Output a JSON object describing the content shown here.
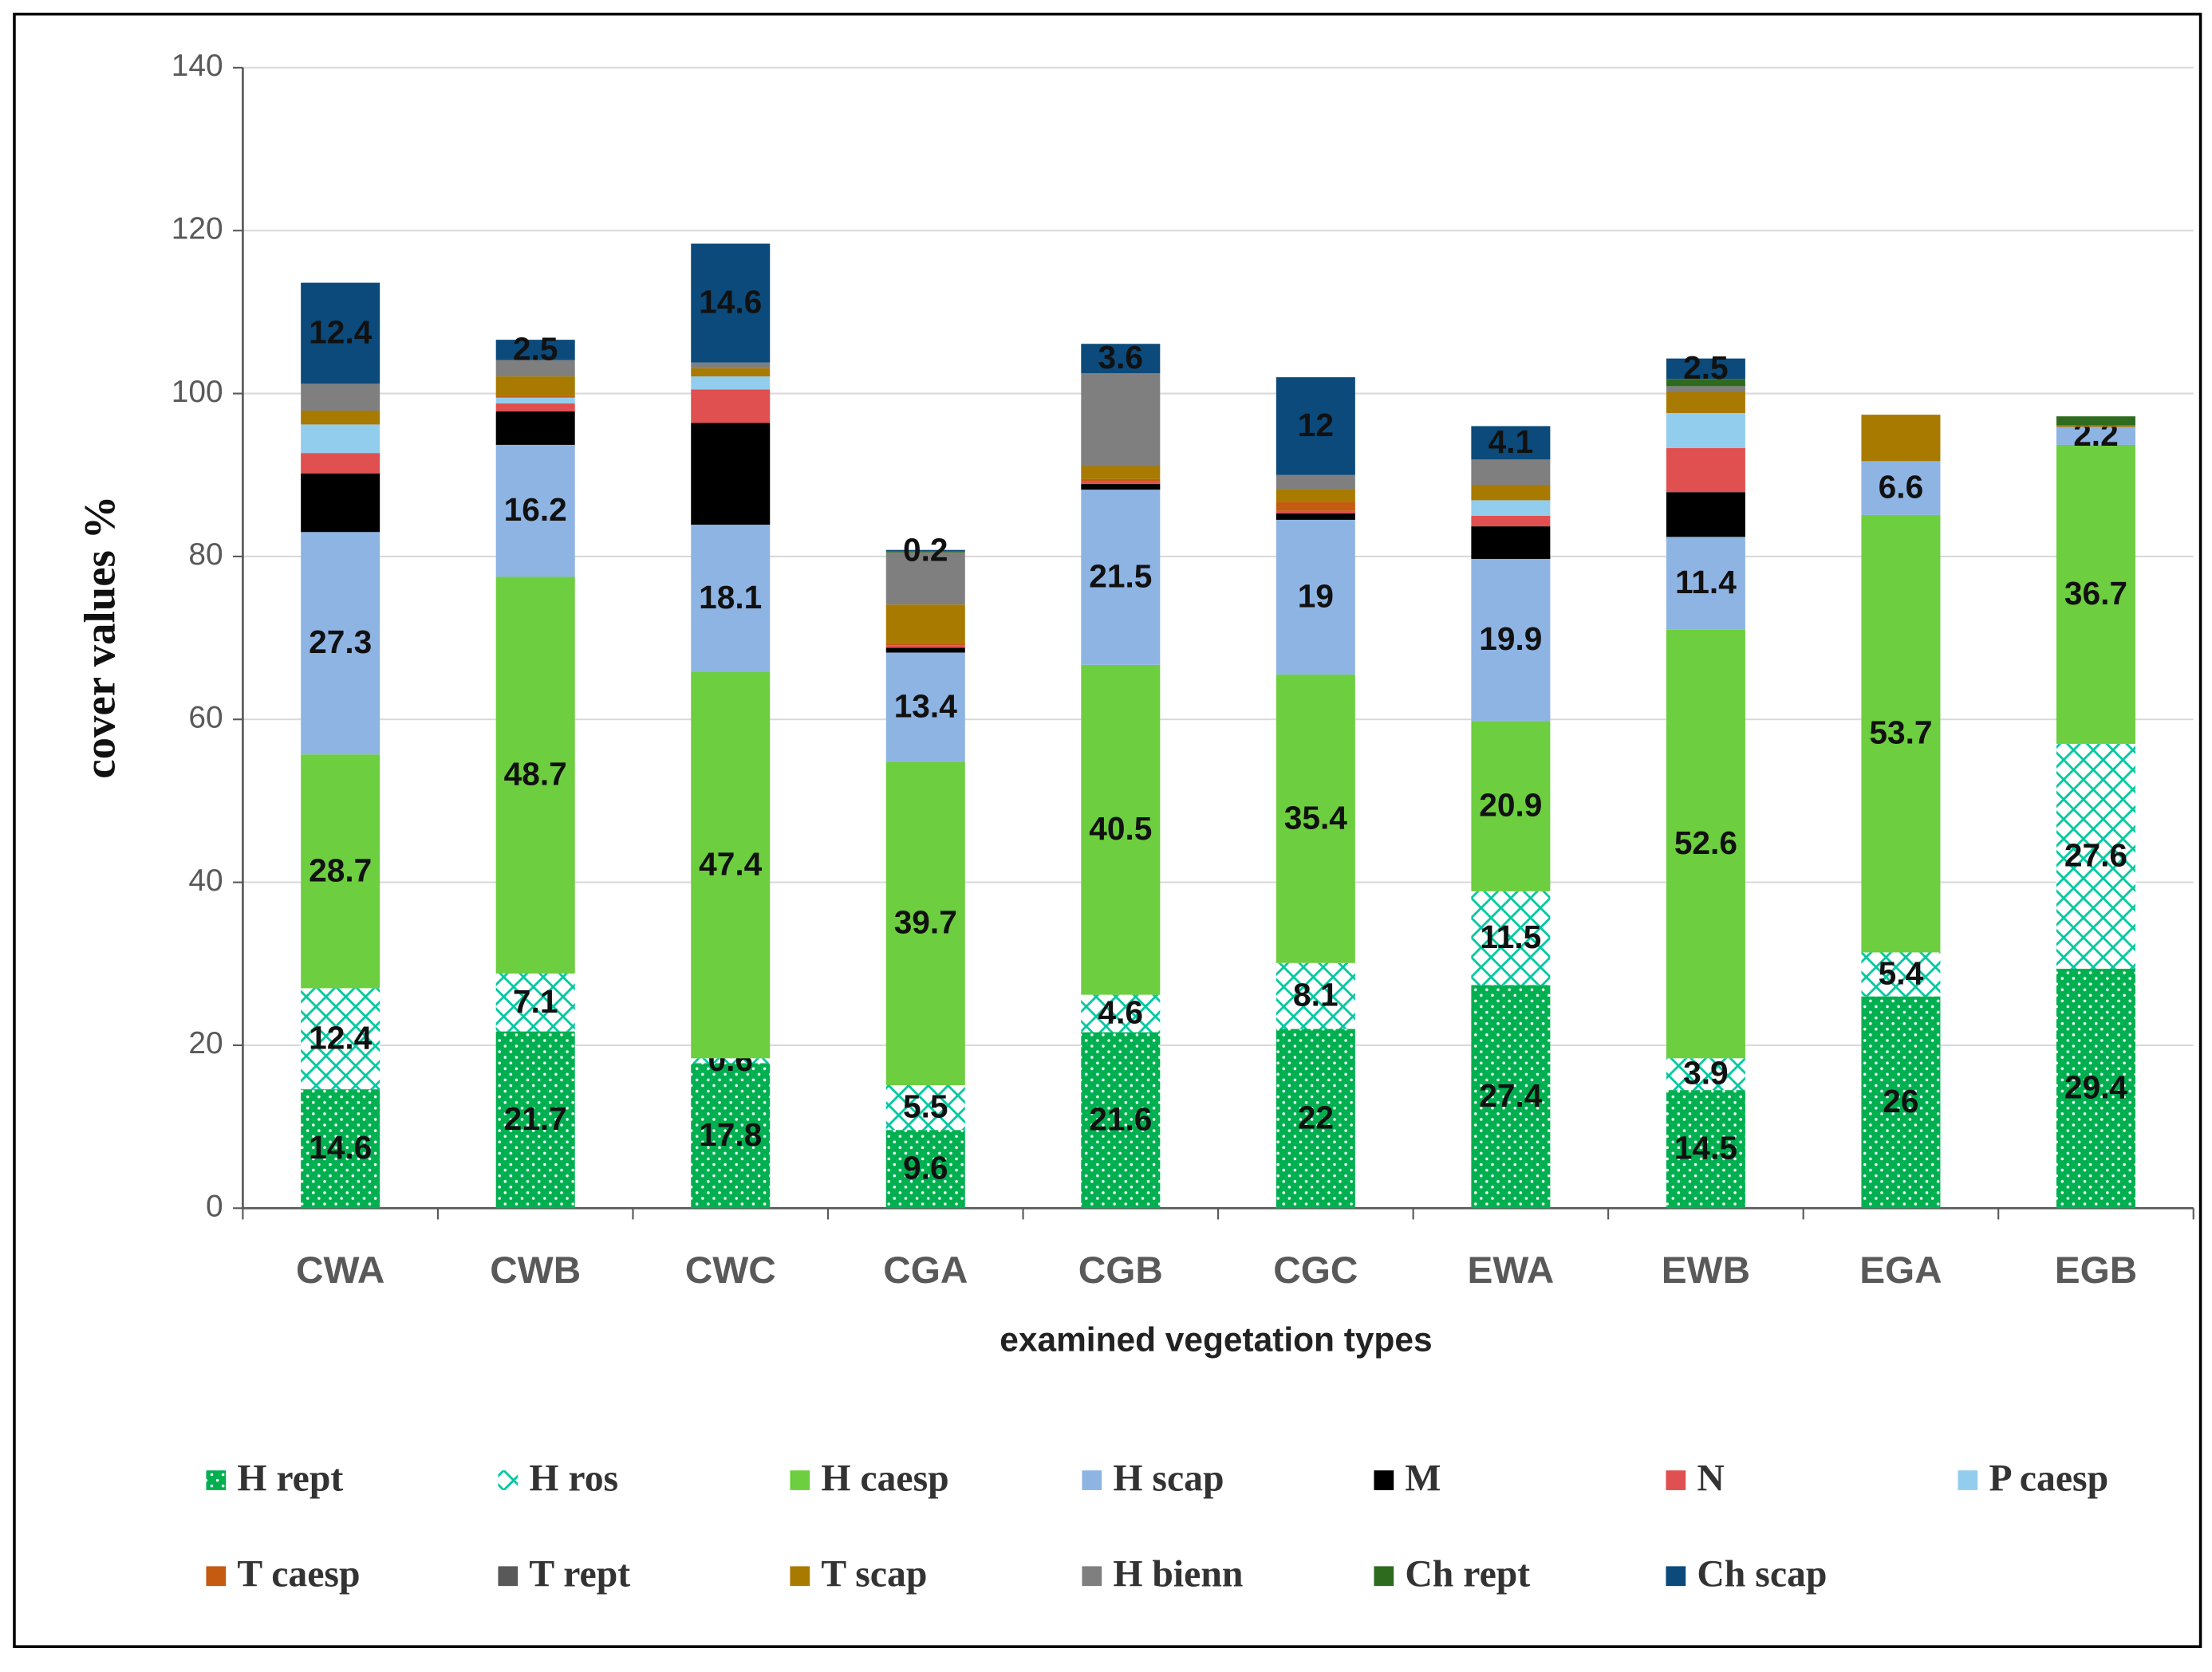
{
  "chart_data": {
    "type": "stacked_bar",
    "x_label": "examined vegetation types",
    "y_label": "cover values %",
    "categories": [
      "CWA",
      "CWB",
      "CWC",
      "CGA",
      "CGB",
      "CGC",
      "EWA",
      "EWB",
      "EGA",
      "EGB"
    ],
    "ylim": [
      0,
      140
    ],
    "yticks": [
      0,
      20,
      40,
      60,
      80,
      100,
      120,
      140
    ],
    "grid": true,
    "legend_position": "bottom",
    "series": [
      {
        "name": "H rept",
        "color": "#00b050",
        "pattern": "dots",
        "data_labels": true,
        "values": [
          14.6,
          21.7,
          17.8,
          9.6,
          21.6,
          22,
          27.4,
          14.5,
          26,
          29.4
        ]
      },
      {
        "name": "H ros",
        "color": "#00c8a0",
        "pattern": "hatch",
        "data_labels": true,
        "values": [
          12.4,
          7.1,
          0.6,
          5.5,
          4.6,
          8.1,
          11.5,
          3.9,
          5.4,
          27.6
        ]
      },
      {
        "name": "H caesp",
        "color": "#6dce3f",
        "data_labels": true,
        "values": [
          28.7,
          48.7,
          47.4,
          39.7,
          40.5,
          35.4,
          20.9,
          52.6,
          53.7,
          36.7
        ]
      },
      {
        "name": "H scap",
        "color": "#8eb4e3",
        "data_labels": true,
        "values": [
          27.3,
          16.2,
          18.1,
          13.4,
          21.5,
          19,
          19.9,
          11.4,
          6.6,
          2.2
        ]
      },
      {
        "name": "M",
        "color": "#000000",
        "values": [
          7.2,
          4.1,
          12.5,
          0.6,
          0.7,
          0.8,
          4.0,
          5.5,
          0,
          0
        ]
      },
      {
        "name": "N",
        "color": "#e05050",
        "values": [
          2.5,
          1.0,
          4.1,
          0.3,
          0.3,
          0.3,
          1.3,
          5.4,
          0,
          0
        ]
      },
      {
        "name": "P caesp",
        "color": "#93cdee",
        "values": [
          3.5,
          0.7,
          1.6,
          0,
          0,
          0,
          1.9,
          4.3,
          0,
          0
        ]
      },
      {
        "name": "T caesp",
        "color": "#c55a11",
        "values": [
          0,
          0.2,
          0,
          0.3,
          0.3,
          1.1,
          0,
          0,
          0,
          0
        ]
      },
      {
        "name": "T rept",
        "color": "#595959",
        "values": [
          0,
          0,
          0,
          0,
          0,
          0,
          0,
          0,
          0,
          0
        ]
      },
      {
        "name": "T scap",
        "color": "#a87a00",
        "values": [
          1.7,
          2.4,
          1.0,
          4.7,
          1.6,
          1.6,
          1.9,
          2.6,
          5.7,
          0.2
        ]
      },
      {
        "name": "H bienn",
        "color": "#7f7f7f",
        "values": [
          3.3,
          2.0,
          0.7,
          6.4,
          11.4,
          1.7,
          3.1,
          0.7,
          0,
          0
        ]
      },
      {
        "name": "Ch rept",
        "color": "#2e6b1f",
        "values": [
          0,
          0,
          0,
          0.1,
          0,
          0,
          0,
          0.9,
          0,
          1.1
        ]
      },
      {
        "name": "Ch scap",
        "color": "#0b4a7a",
        "data_labels": true,
        "values": [
          12.4,
          2.5,
          14.6,
          0.2,
          3.6,
          12,
          4.1,
          2.5,
          0,
          0
        ]
      }
    ]
  }
}
